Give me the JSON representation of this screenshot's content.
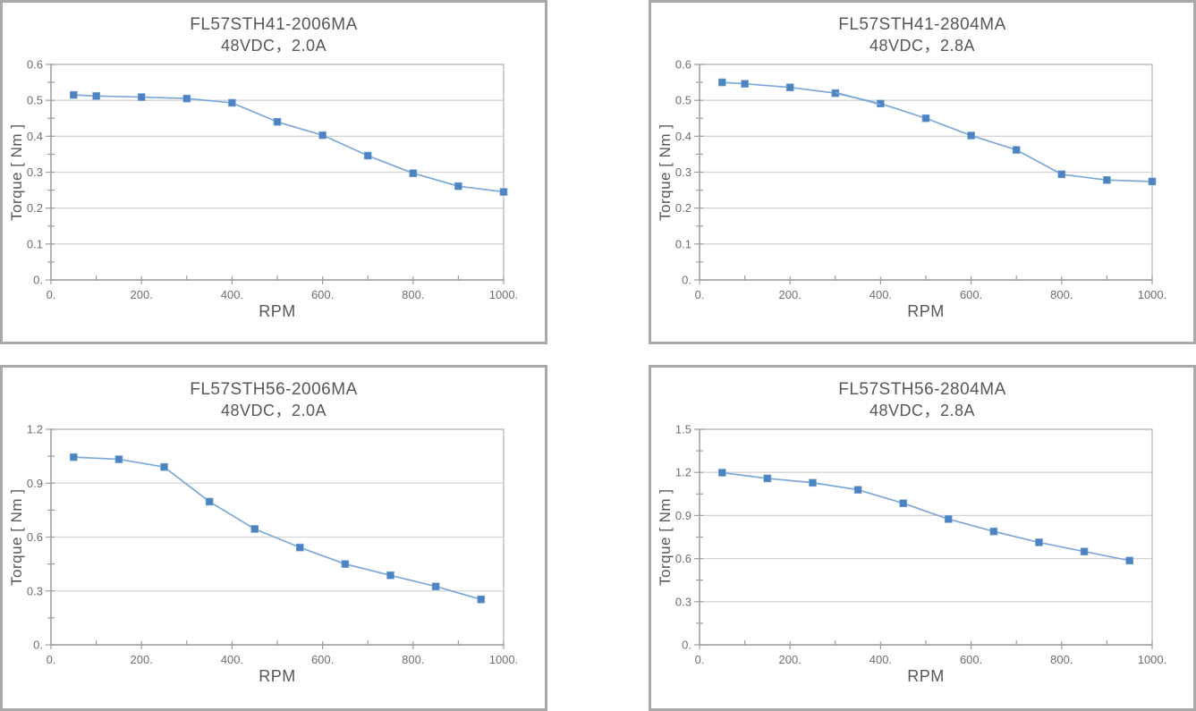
{
  "page": {
    "background": "#ffffff"
  },
  "colors": {
    "panel_border": "#a9a9a9",
    "plot_border": "#b8b8b8",
    "axis": "#9e9e9e",
    "grid": "#d4d4d4",
    "tick": "#9e9e9e",
    "line": "#7ba8d8",
    "marker": "#4d83c1",
    "title_text": "#575757",
    "tick_text": "#6e6e6e"
  },
  "chart_data": [
    {
      "type": "line",
      "model": "FL57STH41-2006MA",
      "condition": "48VDC，2.0A",
      "xlabel": "RPM",
      "ylabel": "Torque [ Nm ]",
      "xlim": [
        0,
        1000
      ],
      "ylim": [
        0,
        0.6
      ],
      "x_ticks": {
        "values": [
          0,
          200,
          400,
          600,
          800,
          1000
        ],
        "labels": [
          "0.",
          "200.",
          "400.",
          "600.",
          "800.",
          "1000."
        ],
        "minor_step": 100
      },
      "y_ticks": {
        "values": [
          0,
          0.1,
          0.2,
          0.3,
          0.4,
          0.5,
          0.6
        ],
        "labels": [
          "0.",
          "0.1",
          "0.2",
          "0.3",
          "0.4",
          "0.5",
          "0.6"
        ],
        "minor_step": 0.05
      },
      "grid": "horizontal",
      "legend": "none",
      "series": [
        {
          "name": "torque-curve",
          "x": [
            50,
            100,
            200,
            300,
            400,
            500,
            600,
            700,
            800,
            900,
            1000
          ],
          "y": [
            0.515,
            0.512,
            0.509,
            0.505,
            0.493,
            0.44,
            0.403,
            0.346,
            0.297,
            0.261,
            0.245
          ],
          "markers": true
        }
      ]
    },
    {
      "type": "line",
      "model": "FL57STH41-2804MA",
      "condition": "48VDC，2.8A",
      "xlabel": "RPM",
      "ylabel": "Torque [ Nm ]",
      "xlim": [
        0,
        1000
      ],
      "ylim": [
        0,
        0.6
      ],
      "x_ticks": {
        "values": [
          0,
          200,
          400,
          600,
          800,
          1000
        ],
        "labels": [
          "0.",
          "200.",
          "400.",
          "600.",
          "800.",
          "1000."
        ],
        "minor_step": 100
      },
      "y_ticks": {
        "values": [
          0,
          0.1,
          0.2,
          0.3,
          0.4,
          0.5,
          0.6
        ],
        "labels": [
          "0.",
          "0.1",
          "0.2",
          "0.3",
          "0.4",
          "0.5",
          "0.6"
        ],
        "minor_step": 0.05
      },
      "grid": "horizontal",
      "legend": "none",
      "series": [
        {
          "name": "torque-curve",
          "x": [
            50,
            100,
            200,
            300,
            400,
            500,
            600,
            700,
            800,
            900,
            1000
          ],
          "y": [
            0.55,
            0.546,
            0.536,
            0.52,
            0.491,
            0.45,
            0.402,
            0.362,
            0.294,
            0.278,
            0.274
          ],
          "markers": true
        },
        {
          "name": "overlap-segment",
          "x": [
            300,
            400
          ],
          "y": [
            0.522,
            0.488
          ],
          "markers": false
        }
      ]
    },
    {
      "type": "line",
      "model": "FL57STH56-2006MA",
      "condition": "48VDC，2.0A",
      "xlabel": "RPM",
      "ylabel": "Torque [ Nm ]",
      "xlim": [
        0,
        1000
      ],
      "ylim": [
        0,
        1.2
      ],
      "x_ticks": {
        "values": [
          0,
          200,
          400,
          600,
          800,
          1000
        ],
        "labels": [
          "0.",
          "200.",
          "400.",
          "600.",
          "800.",
          "1000."
        ],
        "minor_step": 100
      },
      "y_ticks": {
        "values": [
          0,
          0.3,
          0.6,
          0.9,
          1.2
        ],
        "labels": [
          "0.",
          "0.3",
          "0.6",
          "0.9",
          "1.2"
        ],
        "minor_step": 0.15
      },
      "grid": "horizontal",
      "legend": "none",
      "series": [
        {
          "name": "torque-curve",
          "x": [
            50,
            150,
            250,
            350,
            450,
            550,
            650,
            750,
            850,
            950
          ],
          "y": [
            1.045,
            1.033,
            0.99,
            0.797,
            0.645,
            0.542,
            0.45,
            0.387,
            0.325,
            0.253
          ],
          "markers": true
        }
      ]
    },
    {
      "type": "line",
      "model": "FL57STH56-2804MA",
      "condition": "48VDC，2.8A",
      "xlabel": "RPM",
      "ylabel": "Torque [ Nm ]",
      "xlim": [
        0,
        1000
      ],
      "ylim": [
        0,
        1.5
      ],
      "x_ticks": {
        "values": [
          0,
          200,
          400,
          600,
          800,
          1000
        ],
        "labels": [
          "0.",
          "200.",
          "400.",
          "600.",
          "800.",
          "1000."
        ],
        "minor_step": 100
      },
      "y_ticks": {
        "values": [
          0,
          0.3,
          0.6,
          0.9,
          1.2,
          1.5
        ],
        "labels": [
          "0.",
          "0.3",
          "0.6",
          "0.9",
          "1.2",
          "1.5"
        ],
        "minor_step": 0.15
      },
      "grid": "horizontal",
      "legend": "none",
      "series": [
        {
          "name": "torque-curve",
          "x": [
            50,
            150,
            250,
            350,
            450,
            550,
            650,
            750,
            850,
            950
          ],
          "y": [
            1.198,
            1.158,
            1.128,
            1.079,
            0.985,
            0.875,
            0.789,
            0.713,
            0.649,
            0.586
          ],
          "markers": true
        }
      ]
    }
  ]
}
